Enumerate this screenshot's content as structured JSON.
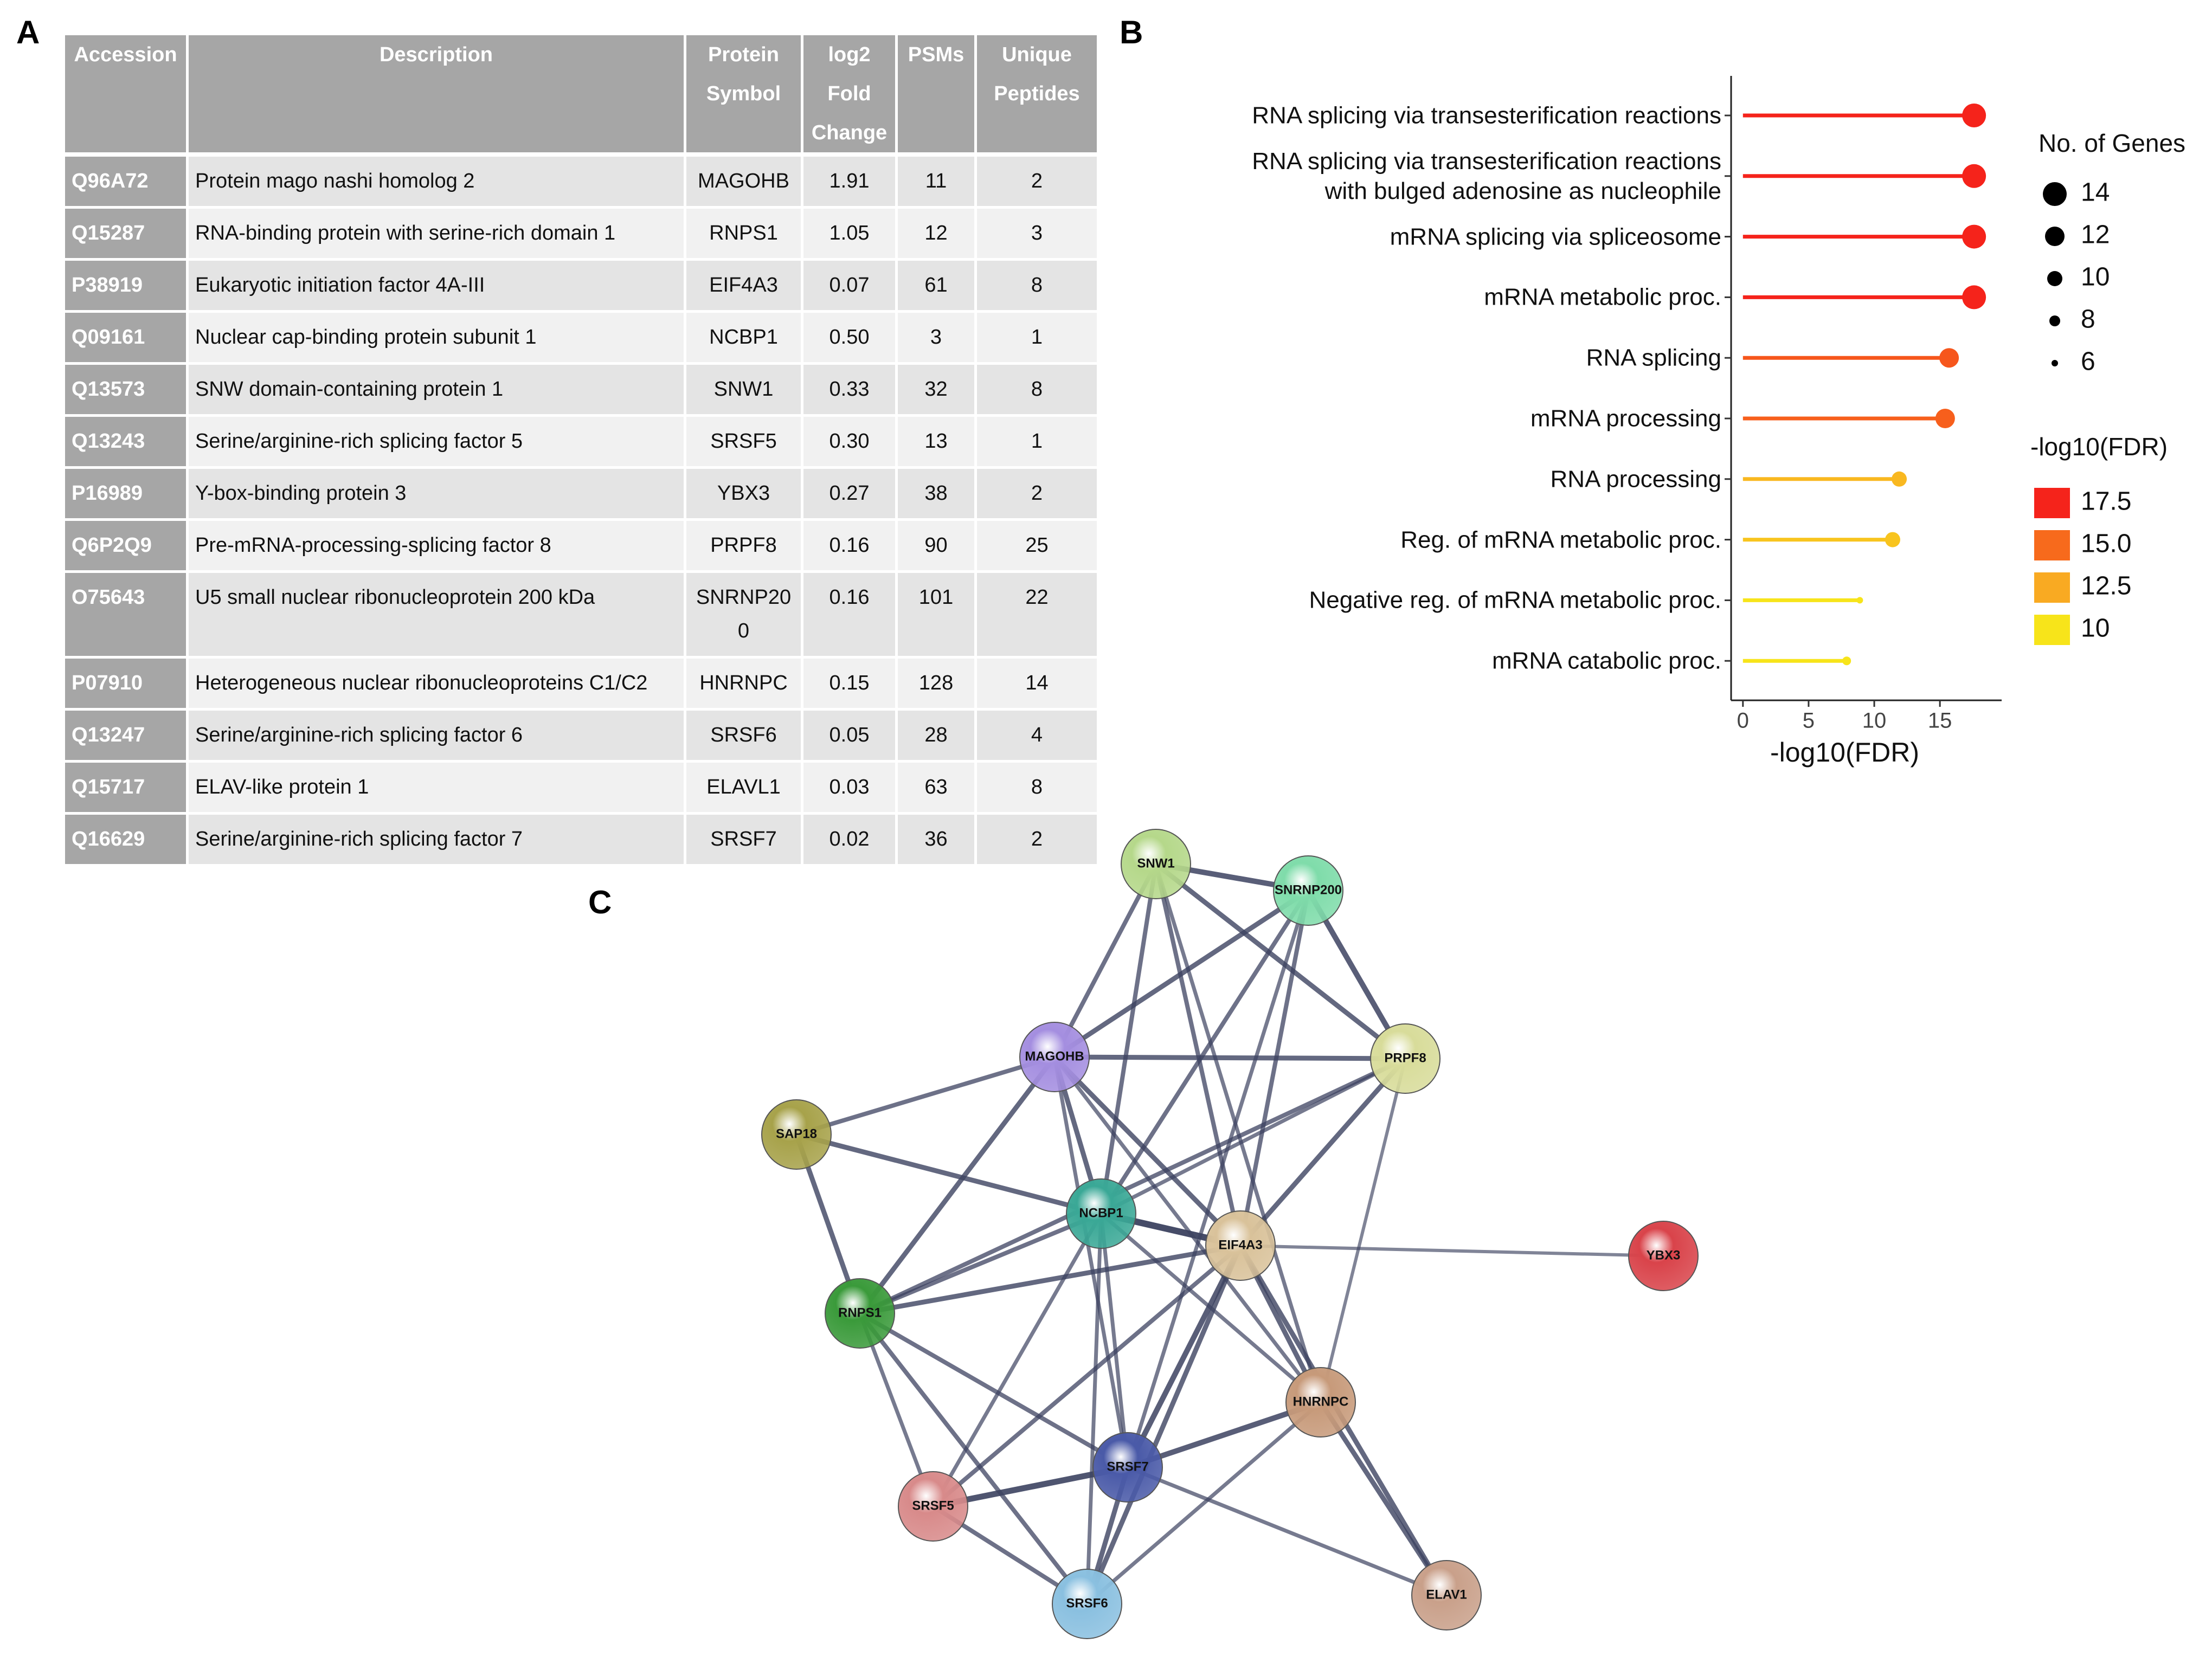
{
  "panels": [
    "A",
    "B",
    "C"
  ],
  "table": {
    "header": [
      "Accession",
      "Description",
      "Protein Symbol",
      "log2 Fold Change",
      "PSMs",
      "Unique Peptides"
    ],
    "rows": [
      [
        "Q96A72",
        "Protein mago nashi homolog 2",
        "MAGOHB",
        "1.91",
        "11",
        "2"
      ],
      [
        "Q15287",
        "RNA-binding protein with serine-rich domain 1",
        "RNPS1",
        "1.05",
        "12",
        "3"
      ],
      [
        "P38919",
        "Eukaryotic initiation factor 4A-III",
        "EIF4A3",
        "0.07",
        "61",
        "8"
      ],
      [
        "Q09161",
        "Nuclear cap-binding protein subunit 1",
        "NCBP1",
        "0.50",
        "3",
        "1"
      ],
      [
        "Q13573",
        "SNW domain-containing protein 1",
        "SNW1",
        "0.33",
        "32",
        "8"
      ],
      [
        "Q13243",
        "Serine/arginine-rich splicing factor 5",
        "SRSF5",
        "0.30",
        "13",
        "1"
      ],
      [
        "P16989",
        "Y-box-binding protein 3",
        "YBX3",
        "0.27",
        "38",
        "2"
      ],
      [
        "Q6P2Q9",
        "Pre-mRNA-processing-splicing factor 8",
        "PRPF8",
        "0.16",
        "90",
        "25"
      ],
      [
        "O75643",
        "U5 small nuclear ribonucleoprotein 200 kDa",
        "SNRNP200",
        "0.16",
        "101",
        "22"
      ],
      [
        "P07910",
        "Heterogeneous nuclear ribonucleoproteins C1/C2",
        "HNRNPC",
        "0.15",
        "128",
        "14"
      ],
      [
        "Q13247",
        "Serine/arginine-rich splicing factor 6",
        "SRSF6",
        "0.05",
        "28",
        "4"
      ],
      [
        "Q15717",
        "ELAV-like protein 1",
        "ELAVL1",
        "0.03",
        "63",
        "8"
      ],
      [
        "Q16629",
        "Serine/arginine-rich splicing factor 7",
        "SRSF7",
        "0.02",
        "36",
        "2"
      ]
    ]
  },
  "chart_data": {
    "type": "lollipop",
    "xlabel": "-log10(FDR)",
    "categories": [
      "RNA splicing via transesterification reactions",
      "RNA splicing via transesterification reactions\nwith bulged adenosine as nucleophile",
      "mRNA splicing via spliceosome",
      "mRNA metabolic proc.",
      "RNA splicing",
      "mRNA processing",
      "RNA processing",
      "Reg. of mRNA metabolic proc.",
      "Negative reg. of mRNA metabolic proc.",
      "mRNA catabolic proc."
    ],
    "values": [
      17.6,
      17.6,
      17.6,
      17.6,
      15.7,
      15.4,
      11.9,
      11.4,
      8.9,
      7.9
    ],
    "sizes": [
      14,
      14,
      14,
      14,
      12,
      12,
      10,
      10,
      6,
      7
    ],
    "xlim": [
      -0.9,
      19.7
    ],
    "xticks": [
      0,
      5,
      10,
      15
    ],
    "size_legend": {
      "title": "No. of Genes",
      "values": [
        14,
        12,
        10,
        8,
        6
      ]
    },
    "color_legend": {
      "title": "-log10(FDR)",
      "ticks": [
        17.5,
        {
          "value": 15,
          "label": "15.0"
        },
        12.5,
        10
      ],
      "colors": [
        "#f5231b",
        "#f76a1c",
        "#f9aa22",
        "#f7e41a"
      ]
    }
  },
  "network": {
    "nodes": [
      "SNW1",
      "SNRNP200",
      "MAGOHB",
      "PRPF8",
      "SAP18",
      "NCBP1",
      "EIF4A3",
      "YBX3",
      "RNPS1",
      "HNRNPC",
      "SRSF7",
      "SRSF5",
      "SRSF6",
      "ELAV1"
    ]
  }
}
